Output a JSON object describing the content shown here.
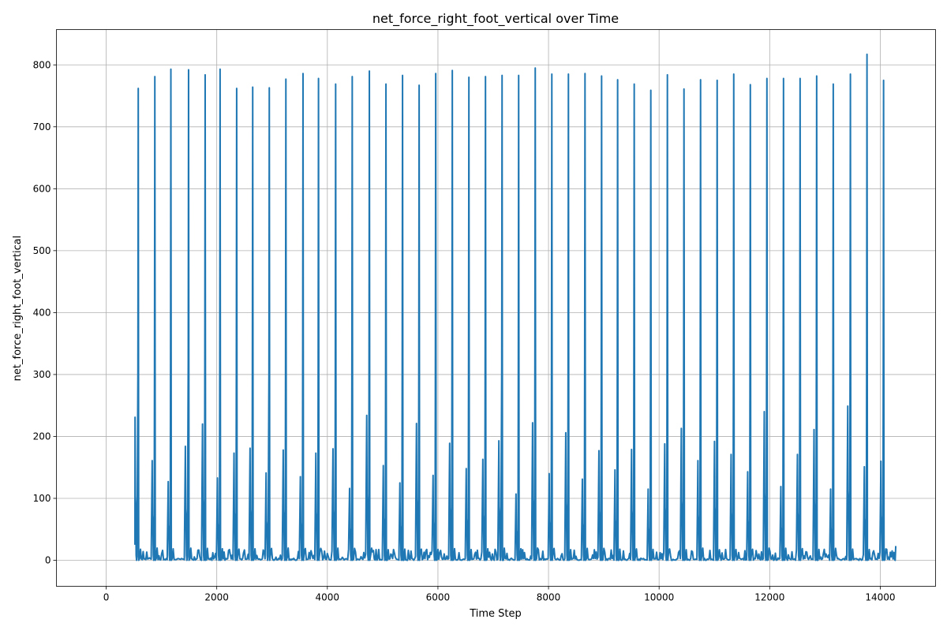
{
  "chart_data": {
    "type": "line",
    "title": "net_force_right_foot_vertical over Time",
    "xlabel": "Time Step",
    "ylabel": "net_force_right_foot_vertical",
    "xlim": [
      -900,
      15000
    ],
    "ylim": [
      -42,
      857
    ],
    "x_ticks": [
      0,
      2000,
      4000,
      6000,
      8000,
      10000,
      12000,
      14000
    ],
    "x_tick_labels": [
      "0",
      "2000",
      "4000",
      "6000",
      "8000",
      "10000",
      "12000",
      "14000"
    ],
    "y_ticks": [
      0,
      100,
      200,
      300,
      400,
      500,
      600,
      700,
      800
    ],
    "y_tick_labels": [
      "0",
      "100",
      "200",
      "300",
      "400",
      "500",
      "600",
      "700",
      "800"
    ],
    "grid": true,
    "line_color": "#1f77b4",
    "series": [
      {
        "x_start": 520,
        "x_end": 14280,
        "stride_peaks": [
          {
            "x": 580,
            "value": 762
          },
          {
            "x": 880,
            "value": 781
          },
          {
            "x": 1170,
            "value": 793
          },
          {
            "x": 1490,
            "value": 792
          },
          {
            "x": 1790,
            "value": 784
          },
          {
            "x": 2060,
            "value": 793
          },
          {
            "x": 2360,
            "value": 762
          },
          {
            "x": 2650,
            "value": 764
          },
          {
            "x": 2950,
            "value": 763
          },
          {
            "x": 3250,
            "value": 777
          },
          {
            "x": 3560,
            "value": 786
          },
          {
            "x": 3840,
            "value": 778
          },
          {
            "x": 4150,
            "value": 769
          },
          {
            "x": 4450,
            "value": 781
          },
          {
            "x": 4760,
            "value": 790
          },
          {
            "x": 5060,
            "value": 769
          },
          {
            "x": 5360,
            "value": 783
          },
          {
            "x": 5660,
            "value": 767
          },
          {
            "x": 5960,
            "value": 786
          },
          {
            "x": 6260,
            "value": 791
          },
          {
            "x": 6560,
            "value": 780
          },
          {
            "x": 6860,
            "value": 781
          },
          {
            "x": 7160,
            "value": 783
          },
          {
            "x": 7460,
            "value": 783
          },
          {
            "x": 7760,
            "value": 795
          },
          {
            "x": 8060,
            "value": 785
          },
          {
            "x": 8360,
            "value": 785
          },
          {
            "x": 8660,
            "value": 786
          },
          {
            "x": 8960,
            "value": 782
          },
          {
            "x": 9250,
            "value": 776
          },
          {
            "x": 9550,
            "value": 769
          },
          {
            "x": 9850,
            "value": 759
          },
          {
            "x": 10150,
            "value": 784
          },
          {
            "x": 10450,
            "value": 761
          },
          {
            "x": 10750,
            "value": 776
          },
          {
            "x": 11050,
            "value": 775
          },
          {
            "x": 11350,
            "value": 785
          },
          {
            "x": 11650,
            "value": 768
          },
          {
            "x": 11950,
            "value": 778
          },
          {
            "x": 12250,
            "value": 778
          },
          {
            "x": 12550,
            "value": 778
          },
          {
            "x": 12850,
            "value": 782
          },
          {
            "x": 13150,
            "value": 769
          },
          {
            "x": 13460,
            "value": 785
          },
          {
            "x": 13760,
            "value": 817
          },
          {
            "x": 14060,
            "value": 775
          }
        ],
        "heel_strike_peaks": [
          {
            "x": 520,
            "value": 231
          },
          {
            "x": 830,
            "value": 161
          },
          {
            "x": 1120,
            "value": 127
          },
          {
            "x": 1430,
            "value": 184
          },
          {
            "x": 1740,
            "value": 220
          },
          {
            "x": 2010,
            "value": 133
          },
          {
            "x": 2310,
            "value": 173
          },
          {
            "x": 2600,
            "value": 181
          },
          {
            "x": 2890,
            "value": 141
          },
          {
            "x": 3200,
            "value": 178
          },
          {
            "x": 3510,
            "value": 135
          },
          {
            "x": 3790,
            "value": 173
          },
          {
            "x": 4100,
            "value": 180
          },
          {
            "x": 4400,
            "value": 116
          },
          {
            "x": 4710,
            "value": 234
          },
          {
            "x": 5010,
            "value": 153
          },
          {
            "x": 5310,
            "value": 125
          },
          {
            "x": 5610,
            "value": 221
          },
          {
            "x": 5910,
            "value": 137
          },
          {
            "x": 6210,
            "value": 189
          },
          {
            "x": 6510,
            "value": 148
          },
          {
            "x": 6810,
            "value": 163
          },
          {
            "x": 7100,
            "value": 193
          },
          {
            "x": 7410,
            "value": 107
          },
          {
            "x": 7710,
            "value": 222
          },
          {
            "x": 8010,
            "value": 140
          },
          {
            "x": 8310,
            "value": 206
          },
          {
            "x": 8610,
            "value": 131
          },
          {
            "x": 8910,
            "value": 177
          },
          {
            "x": 9200,
            "value": 146
          },
          {
            "x": 9500,
            "value": 179
          },
          {
            "x": 9800,
            "value": 115
          },
          {
            "x": 10100,
            "value": 188
          },
          {
            "x": 10400,
            "value": 213
          },
          {
            "x": 10700,
            "value": 161
          },
          {
            "x": 11000,
            "value": 192
          },
          {
            "x": 11300,
            "value": 171
          },
          {
            "x": 11600,
            "value": 143
          },
          {
            "x": 11900,
            "value": 240
          },
          {
            "x": 12200,
            "value": 119
          },
          {
            "x": 12500,
            "value": 171
          },
          {
            "x": 12800,
            "value": 211
          },
          {
            "x": 13100,
            "value": 115
          },
          {
            "x": 13410,
            "value": 249
          },
          {
            "x": 13710,
            "value": 151
          },
          {
            "x": 14010,
            "value": 160
          }
        ],
        "swing_level_max": 20,
        "end_value": 23
      }
    ]
  }
}
